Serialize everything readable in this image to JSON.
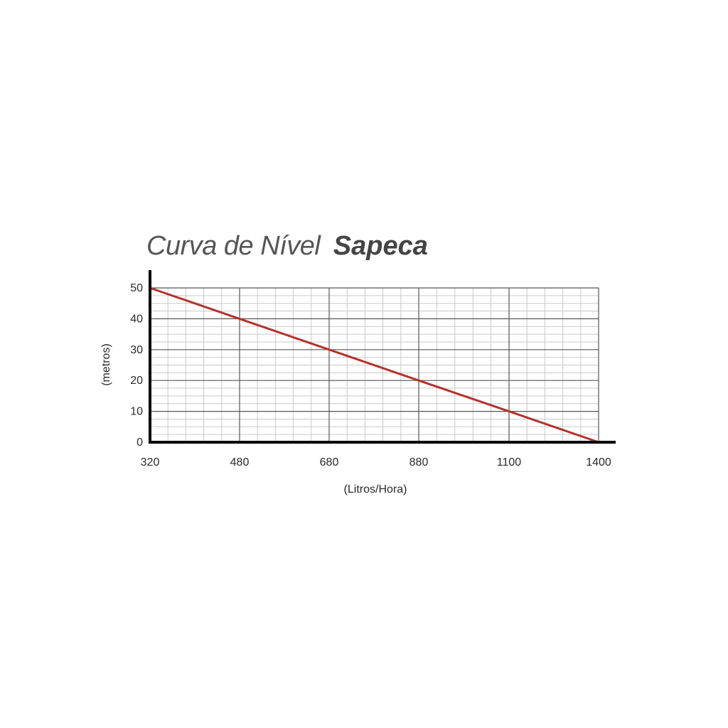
{
  "title": {
    "prefix": "Curva de Nível",
    "name": "Sapeca"
  },
  "colors": {
    "line": "#b5312b",
    "major_grid": "#555555",
    "minor_grid": "#c9c9c9",
    "axis": "#000000",
    "text": "#2a2a2a"
  },
  "chart_data": {
    "type": "line",
    "x_tick_labels": [
      "320",
      "480",
      "680",
      "880",
      "1100",
      "1400"
    ],
    "y_tick_labels": [
      "0",
      "10",
      "20",
      "30",
      "40",
      "50"
    ],
    "xlabel": "(Litros/Hora)",
    "ylabel": "(metros)",
    "ylim": [
      0,
      50
    ],
    "grid": true,
    "series": [
      {
        "x": [
          "320",
          "480",
          "680",
          "880",
          "1100",
          "1400"
        ],
        "values": [
          50,
          40,
          30,
          20,
          10,
          0
        ]
      }
    ]
  }
}
